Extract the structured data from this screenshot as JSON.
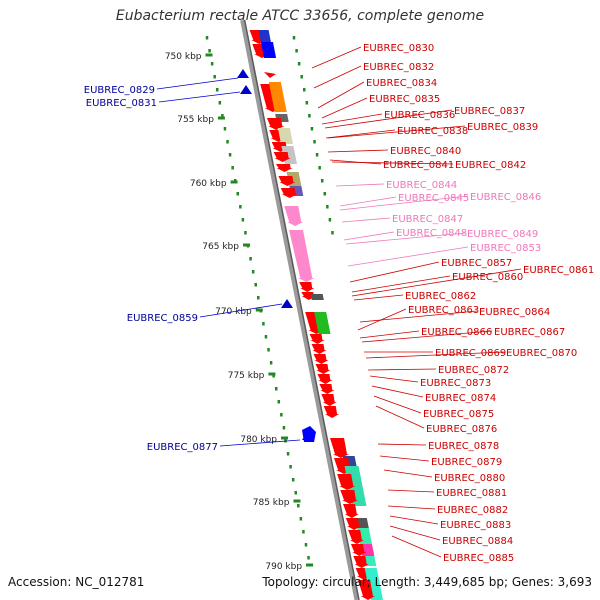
{
  "title": "Eubacterium rectale ATCC 33656, complete genome",
  "footer": {
    "accession": "Accession: NC_012781",
    "topology": "Topology: circular; Length: 3,449,685 bp; Genes: 3,693"
  },
  "colors": {
    "backbone": "#888888",
    "forward": "#ff0000",
    "reverse": "#0000cc",
    "pink": "#ff88cc",
    "tick": "#228822",
    "label_forward": "#cc0000",
    "label_reverse": "#000099",
    "label_pink": "#ee77bb"
  },
  "scale": {
    "unit": "kbp",
    "ticks": [
      "750 kbp",
      "755 kbp",
      "760 kbp",
      "765 kbp",
      "770 kbp",
      "775 kbp",
      "780 kbp",
      "785 kbp",
      "790 kbp"
    ]
  },
  "genes_left": [
    "EUBREC_0829",
    "EUBREC_0831",
    "EUBREC_0859",
    "EUBREC_0877"
  ],
  "genes_right": [
    "EUBREC_0830",
    "EUBREC_0832",
    "EUBREC_0834",
    "EUBREC_0835",
    "EUBREC_0836",
    "EUBREC_0837",
    "EUBREC_0838",
    "EUBREC_0839",
    "EUBREC_0840",
    "EUBREC_0841",
    "EUBREC_0842",
    "EUBREC_0844",
    "EUBREC_0845",
    "EUBREC_0846",
    "EUBREC_0847",
    "EUBREC_0848",
    "EUBREC_0849",
    "EUBREC_0853",
    "EUBREC_0857",
    "EUBREC_0860",
    "EUBREC_0861",
    "EUBREC_0862",
    "EUBREC_0863",
    "EUBREC_0864",
    "EUBREC_0866",
    "EUBREC_0867",
    "EUBREC_0869",
    "EUBREC_0870",
    "EUBREC_0872",
    "EUBREC_0873",
    "EUBREC_0874",
    "EUBREC_0875",
    "EUBREC_0876",
    "EUBREC_0878",
    "EUBREC_0879",
    "EUBREC_0880",
    "EUBREC_0881",
    "EUBREC_0882",
    "EUBREC_0883",
    "EUBREC_0884",
    "EUBREC_0885"
  ]
}
